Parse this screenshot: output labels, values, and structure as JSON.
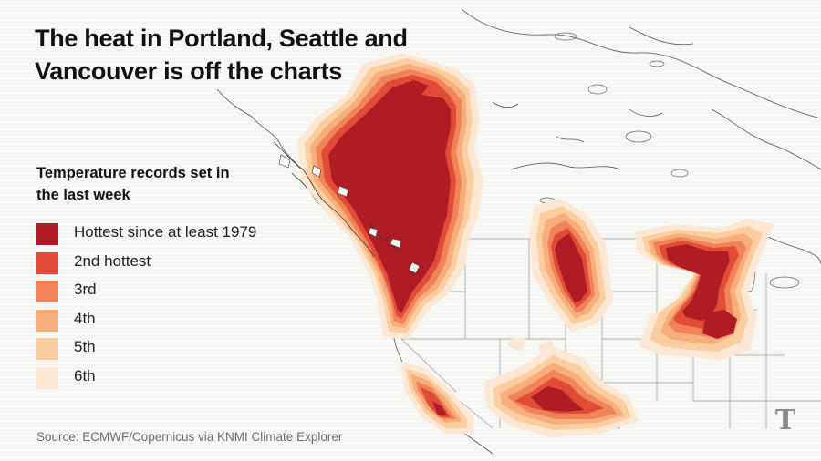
{
  "header": {
    "title": "The heat in Portland, Seattle and Vancouver is off the charts"
  },
  "legend": {
    "title": "Temperature records set in the last week",
    "items": [
      {
        "label": "Hottest since at least 1979",
        "color": "#b01c23"
      },
      {
        "label": "2nd hottest",
        "color": "#e24b38"
      },
      {
        "label": "3rd",
        "color": "#f08457"
      },
      {
        "label": "4th",
        "color": "#f7ad7c"
      },
      {
        "label": "5th",
        "color": "#fbcd9f"
      },
      {
        "label": "6th",
        "color": "#fde8d6"
      }
    ]
  },
  "footer": {
    "source": "Source: ECMWF/Copernicus via KNMI Climate Explorer"
  },
  "logo": {
    "icon": "nyt-t-logo-icon",
    "glyph": "T"
  }
}
